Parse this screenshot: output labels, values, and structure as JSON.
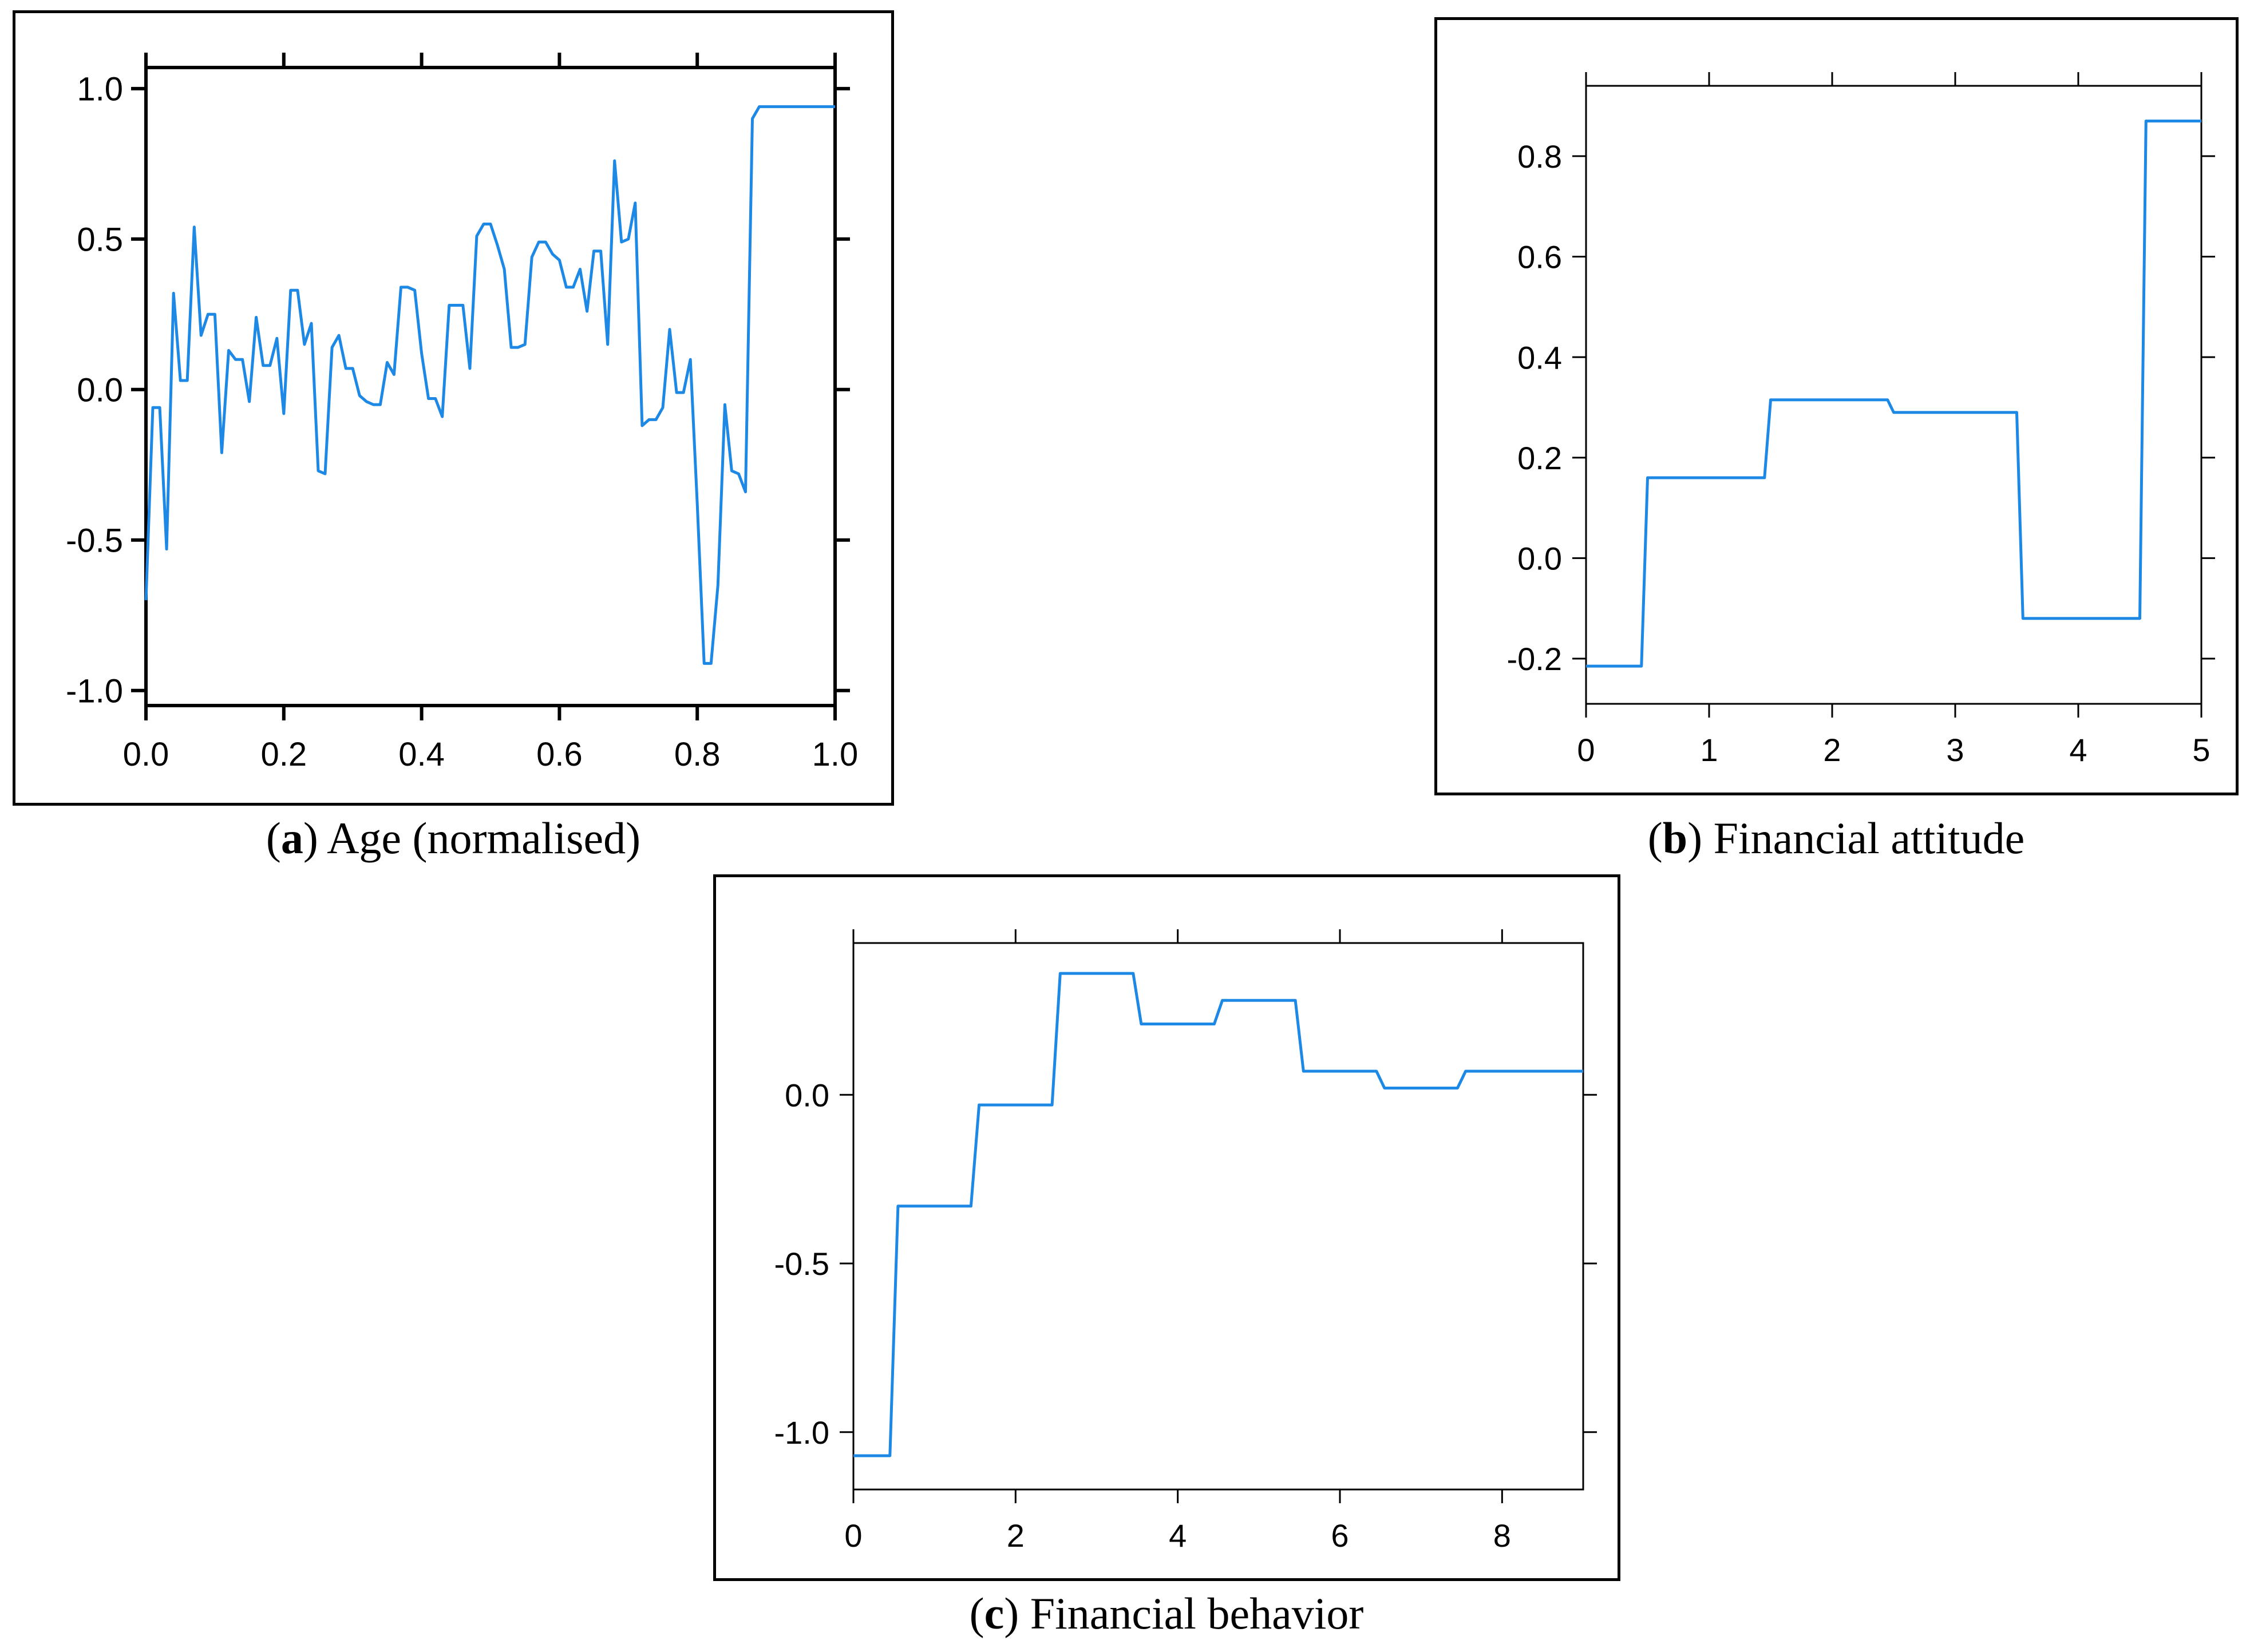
{
  "colors": {
    "line": "#1e88e5",
    "axis": "#000000"
  },
  "captions": {
    "a": {
      "letter": "a",
      "text": "Age (normalised)"
    },
    "b": {
      "letter": "b",
      "text": "Financial attitude"
    },
    "c": {
      "letter": "c",
      "text": "Financial behavior"
    }
  },
  "chart_data": [
    {
      "id": "a",
      "type": "line",
      "title": "",
      "xlabel": "",
      "ylabel": "",
      "xlim": [
        0.0,
        1.0
      ],
      "ylim": [
        -1.05,
        1.07
      ],
      "xticks": [
        "0.0",
        "0.2",
        "0.4",
        "0.6",
        "0.8",
        "1.0"
      ],
      "yticks": [
        "1.0",
        "0.5",
        "0.0",
        "-0.5",
        "-1.0"
      ],
      "grid": false,
      "series": [
        {
          "x": [
            0.0,
            0.01,
            0.02,
            0.03,
            0.04,
            0.05,
            0.06,
            0.07,
            0.08,
            0.09,
            0.1,
            0.11,
            0.12,
            0.13,
            0.14,
            0.15,
            0.16,
            0.17,
            0.18,
            0.19,
            0.2,
            0.21,
            0.22,
            0.23,
            0.24,
            0.25,
            0.26,
            0.27,
            0.28,
            0.29,
            0.3,
            0.31,
            0.32,
            0.33,
            0.34,
            0.35,
            0.36,
            0.37,
            0.38,
            0.39,
            0.4,
            0.41,
            0.42,
            0.43,
            0.44,
            0.45,
            0.46,
            0.47,
            0.48,
            0.49,
            0.5,
            0.51,
            0.52,
            0.53,
            0.54,
            0.55,
            0.56,
            0.57,
            0.58,
            0.59,
            0.6,
            0.61,
            0.62,
            0.63,
            0.64,
            0.65,
            0.66,
            0.67,
            0.68,
            0.69,
            0.7,
            0.71,
            0.72,
            0.73,
            0.74,
            0.75,
            0.76,
            0.77,
            0.78,
            0.79,
            0.8,
            0.81,
            0.82,
            0.83,
            0.84,
            0.85,
            0.86,
            0.87,
            0.88,
            0.89,
            0.9,
            1.0
          ],
          "y": [
            -0.7,
            -0.06,
            -0.06,
            -0.53,
            0.32,
            0.03,
            0.03,
            0.54,
            0.18,
            0.25,
            0.25,
            -0.21,
            0.13,
            0.1,
            0.1,
            -0.04,
            0.24,
            0.08,
            0.08,
            0.17,
            -0.08,
            0.33,
            0.33,
            0.15,
            0.22,
            -0.27,
            -0.28,
            0.14,
            0.18,
            0.07,
            0.07,
            -0.02,
            -0.04,
            -0.05,
            -0.05,
            0.09,
            0.05,
            0.34,
            0.34,
            0.33,
            0.12,
            -0.03,
            -0.03,
            -0.09,
            0.28,
            0.28,
            0.28,
            0.07,
            0.51,
            0.55,
            0.55,
            0.48,
            0.4,
            0.14,
            0.14,
            0.15,
            0.44,
            0.49,
            0.49,
            0.45,
            0.43,
            0.34,
            0.34,
            0.4,
            0.26,
            0.46,
            0.46,
            0.15,
            0.76,
            0.49,
            0.5,
            0.62,
            -0.12,
            -0.1,
            -0.1,
            -0.06,
            0.2,
            -0.01,
            -0.01,
            0.1,
            -0.38,
            -0.91,
            -0.91,
            -0.65,
            -0.05,
            -0.27,
            -0.28,
            -0.34,
            0.9,
            0.94,
            0.94,
            0.94
          ]
        }
      ]
    },
    {
      "id": "b",
      "type": "line",
      "title": "",
      "xlabel": "",
      "ylabel": "",
      "xlim": [
        0,
        5
      ],
      "ylim": [
        -0.29,
        0.94
      ],
      "xticks": [
        "0",
        "1",
        "2",
        "3",
        "4",
        "5"
      ],
      "yticks": [
        "0.8",
        "0.6",
        "0.4",
        "0.2",
        "0.0",
        "-0.2"
      ],
      "grid": false,
      "series": [
        {
          "x": [
            0,
            0.45,
            0.5,
            1.45,
            1.5,
            2.45,
            2.5,
            3.5,
            3.55,
            4.5,
            4.55,
            5.0
          ],
          "y": [
            -0.215,
            -0.215,
            0.16,
            0.16,
            0.315,
            0.315,
            0.29,
            0.29,
            -0.12,
            -0.12,
            0.87,
            0.87
          ]
        }
      ]
    },
    {
      "id": "c",
      "type": "line",
      "title": "",
      "xlabel": "",
      "ylabel": "",
      "xlim": [
        0,
        9
      ],
      "ylim": [
        -1.17,
        0.45
      ],
      "xticks": [
        "0",
        "2",
        "4",
        "6",
        "8"
      ],
      "yticks": [
        "0.0",
        "-0.5",
        "-1.0"
      ],
      "grid": false,
      "series": [
        {
          "x": [
            0,
            0.45,
            0.55,
            1.45,
            1.55,
            2.45,
            2.55,
            3.45,
            3.55,
            4.45,
            4.55,
            5.45,
            5.55,
            6.45,
            6.55,
            7.45,
            7.55,
            9.0
          ],
          "y": [
            -1.07,
            -1.07,
            -0.33,
            -0.33,
            -0.03,
            -0.03,
            0.36,
            0.36,
            0.21,
            0.21,
            0.28,
            0.28,
            0.07,
            0.07,
            0.02,
            0.02,
            0.07,
            0.07
          ]
        }
      ]
    }
  ]
}
